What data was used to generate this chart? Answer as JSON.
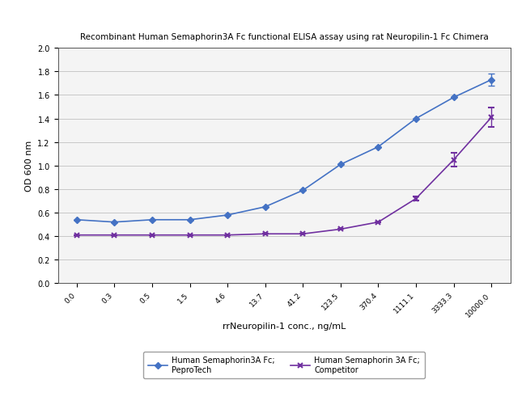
{
  "title": "Recombinant Human Semaphorin3A Fc functional ELISA assay using rat Neuropilin-1 Fc Chimera",
  "xlabel": "rrNeuropilin-1 conc., ng/mL",
  "ylabel": "OD 600 nm",
  "x_labels": [
    "0.0",
    "0.3",
    "0.5",
    "1.5",
    "4.6",
    "13.7",
    "41.2",
    "123.5",
    "370.4",
    "1111.1",
    "3333.3",
    "10000.0"
  ],
  "x_values": [
    0,
    1,
    2,
    3,
    4,
    5,
    6,
    7,
    8,
    9,
    10,
    11
  ],
  "peprotech_y": [
    0.54,
    0.52,
    0.54,
    0.54,
    0.58,
    0.65,
    0.79,
    1.01,
    1.16,
    1.4,
    1.58,
    1.73
  ],
  "peprotech_yerr": [
    0.0,
    0.0,
    0.0,
    0.0,
    0.0,
    0.0,
    0.0,
    0.0,
    0.0,
    0.0,
    0.0,
    0.05
  ],
  "competitor_y": [
    0.41,
    0.41,
    0.41,
    0.41,
    0.41,
    0.42,
    0.42,
    0.46,
    0.52,
    0.72,
    1.05,
    1.41
  ],
  "competitor_yerr": [
    0.0,
    0.0,
    0.0,
    0.0,
    0.0,
    0.0,
    0.0,
    0.0,
    0.0,
    0.02,
    0.06,
    0.08
  ],
  "peprotech_color": "#4472C4",
  "competitor_color": "#7030A0",
  "ylim": [
    0.0,
    2.0
  ],
  "yticks": [
    0.0,
    0.2,
    0.4,
    0.6,
    0.8,
    1.0,
    1.2,
    1.4,
    1.6,
    1.8,
    2.0
  ],
  "legend_label1_line1": "Human Semaphorin3A Fc;",
  "legend_label1_line2": "PeproTech",
  "legend_label2_line1": "Human Semaphorin 3A Fc;",
  "legend_label2_line2": "Competitor",
  "fig_bg_color": "#ffffff",
  "plot_bg_color": "#ffffff",
  "grid_color": "#c8c8c8",
  "panel_bg": "#e8e8e8"
}
